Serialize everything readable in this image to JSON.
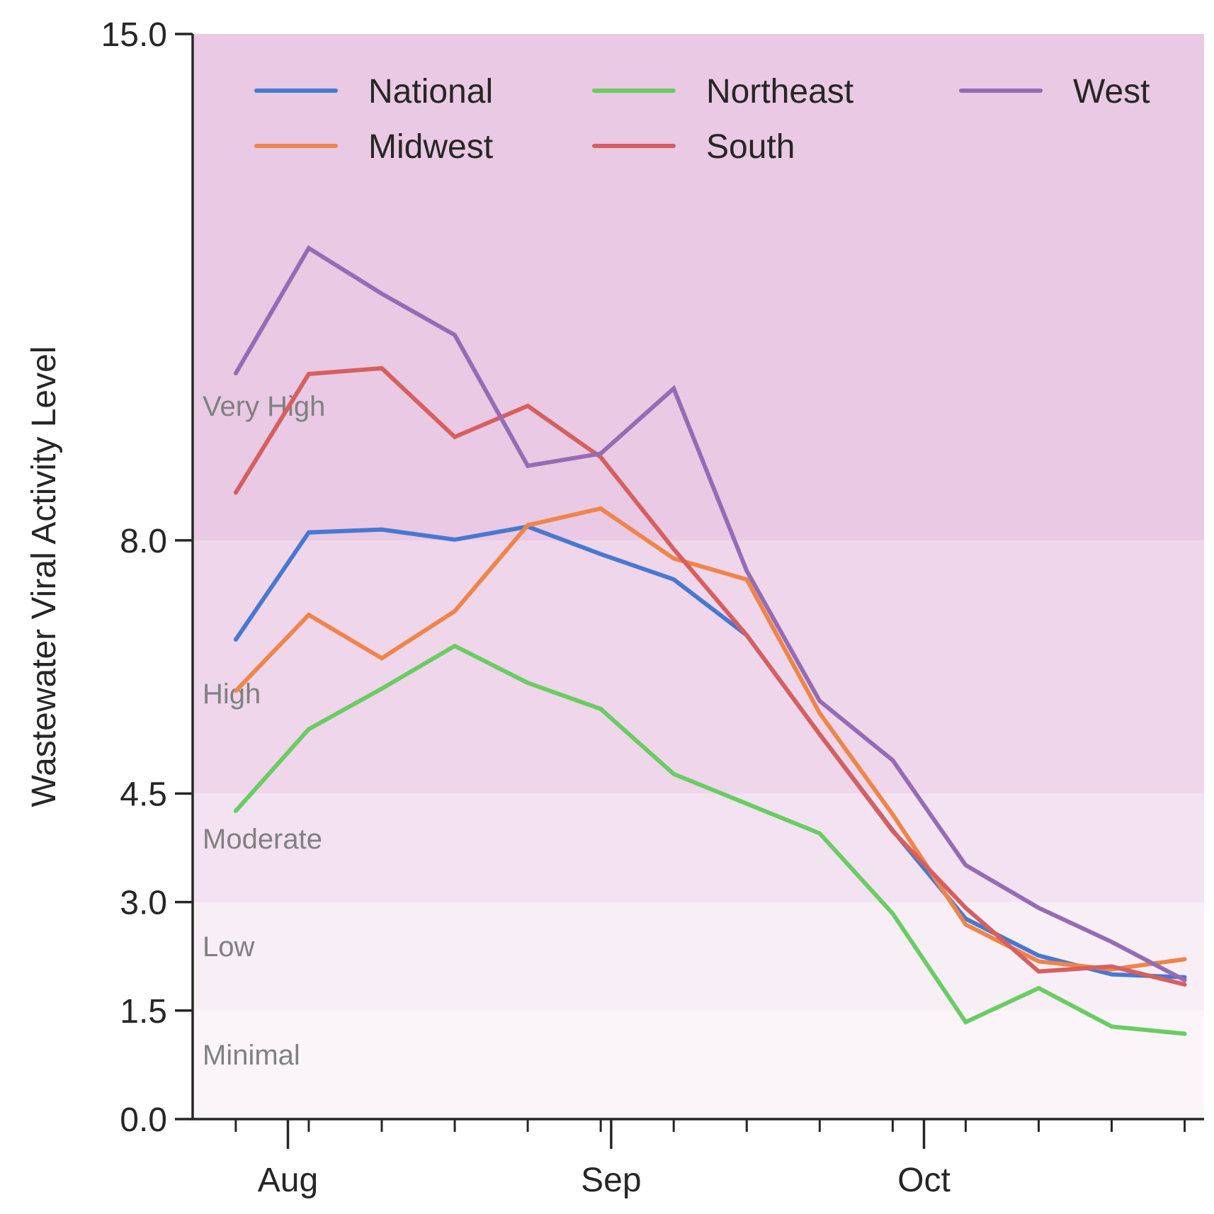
{
  "chart_data": {
    "type": "line",
    "title": "",
    "xlabel": "",
    "ylabel": "Wastewater Viral Activity Level",
    "ylim": [
      0.0,
      15.0
    ],
    "yticks": [
      0.0,
      1.5,
      3.0,
      4.5,
      8.0,
      15.0
    ],
    "ytick_labels": [
      "0.0",
      "1.5",
      "3.0",
      "4.5",
      "8.0",
      "15.0"
    ],
    "x_dates": [
      "2024-07-27",
      "2024-08-03",
      "2024-08-10",
      "2024-08-17",
      "2024-08-24",
      "2024-08-31",
      "2024-09-07",
      "2024-09-14",
      "2024-09-21",
      "2024-09-28",
      "2024-10-05",
      "2024-10-12",
      "2024-10-19",
      "2024-10-26"
    ],
    "x_major_ticks": [
      {
        "date": "2024-08-01",
        "label": "Aug"
      },
      {
        "date": "2024-09-01",
        "label": "Sep"
      },
      {
        "date": "2024-10-01",
        "label": "Oct"
      }
    ],
    "xlim": [
      "2024-07-23",
      "2024-10-28"
    ],
    "grid": false,
    "legend": {
      "placement": "top",
      "columns": 3
    },
    "bands": [
      {
        "label": "Minimal",
        "from": 0.0,
        "to": 1.5,
        "color": "#fbf5fa"
      },
      {
        "label": "Low",
        "from": 1.5,
        "to": 3.0,
        "color": "#f7eef6"
      },
      {
        "label": "Moderate",
        "from": 3.0,
        "to": 4.5,
        "color": "#f3e2f1"
      },
      {
        "label": "High",
        "from": 4.5,
        "to": 8.0,
        "color": "#efd6ea"
      },
      {
        "label": "Very High",
        "from": 8.0,
        "to": 15.0,
        "color": "#e9c9e3"
      }
    ],
    "series": [
      {
        "name": "National",
        "color": "#4878d0",
        "values": [
          6.63,
          8.11,
          8.15,
          8.01,
          8.19,
          7.81,
          7.46,
          6.69,
          5.32,
          3.99,
          2.77,
          2.26,
          2.0,
          1.96
        ]
      },
      {
        "name": "Midwest",
        "color": "#ee854a",
        "values": [
          5.92,
          6.97,
          6.37,
          7.02,
          8.21,
          8.44,
          7.75,
          7.46,
          5.61,
          4.21,
          2.69,
          2.18,
          2.07,
          2.21
        ]
      },
      {
        "name": "Northeast",
        "color": "#6acc64",
        "values": [
          4.26,
          5.39,
          5.95,
          6.54,
          6.03,
          5.67,
          4.77,
          4.36,
          3.95,
          2.84,
          1.34,
          1.81,
          1.28,
          1.18
        ]
      },
      {
        "name": "South",
        "color": "#d65f5f",
        "values": [
          8.66,
          10.3,
          10.38,
          9.43,
          9.86,
          9.15,
          7.88,
          6.69,
          5.32,
          3.98,
          2.92,
          2.04,
          2.11,
          1.86
        ]
      },
      {
        "name": "West",
        "color": "#956cb4",
        "values": [
          10.31,
          12.04,
          11.41,
          10.84,
          9.03,
          9.2,
          10.1,
          7.58,
          5.78,
          4.96,
          3.51,
          2.92,
          2.45,
          1.92
        ]
      }
    ]
  }
}
